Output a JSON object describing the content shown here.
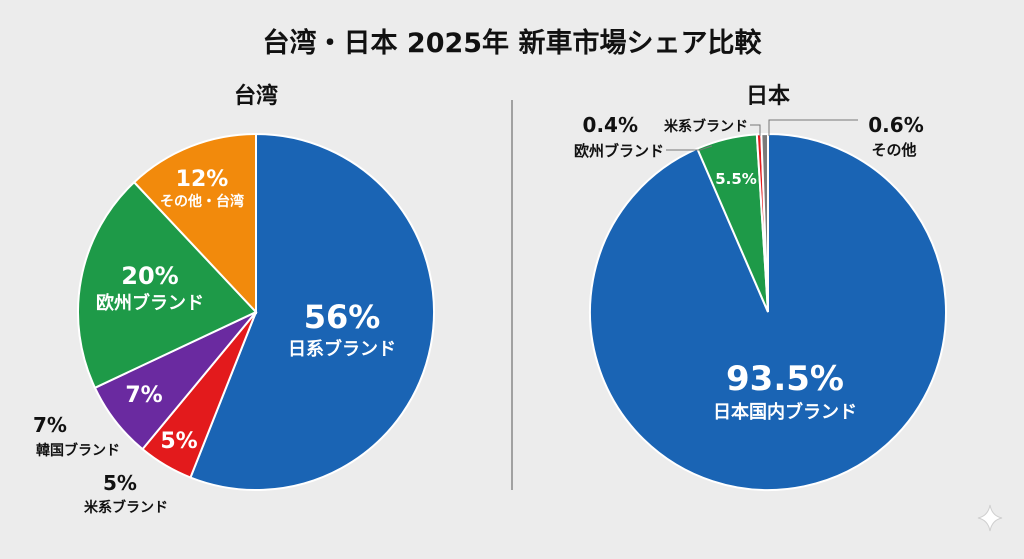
{
  "title": "台湾・日本 2025年 新車市場シェア比較",
  "colors": {
    "japan_brand": "#1a64b4",
    "us_brand": "#e31a1c",
    "korea_brand": "#6a2aa0",
    "europe_brand": "#1e9a48",
    "other": "#f28a0c",
    "background": "#ececec",
    "divider": "#888888"
  },
  "chart_data": [
    {
      "type": "pie",
      "title": "台湾",
      "slices": [
        {
          "label": "日系ブランド",
          "value": 56,
          "value_text": "56%",
          "color": "#1a64b4",
          "label_position": "inside"
        },
        {
          "label": "米系ブランド",
          "value": 5,
          "value_text": "5%",
          "color": "#e31a1c",
          "label_position": "inside+outside"
        },
        {
          "label": "韓国ブランド",
          "value": 7,
          "value_text": "7%",
          "color": "#6a2aa0",
          "label_position": "inside+outside"
        },
        {
          "label": "欧州ブランド",
          "value": 20,
          "value_text": "20%",
          "color": "#1e9a48",
          "label_position": "inside"
        },
        {
          "label": "その他・台湾",
          "value": 12,
          "value_text": "12%",
          "color": "#f28a0c",
          "label_position": "inside"
        }
      ]
    },
    {
      "type": "pie",
      "title": "日本",
      "slices": [
        {
          "label": "日本国内ブランド",
          "value": 93.5,
          "value_text": "93.5%",
          "color": "#1a64b4",
          "label_position": "inside"
        },
        {
          "label": "欧州ブランド",
          "value": 5.5,
          "value_text": "5.5%",
          "color": "#1e9a48",
          "label_position": "inside+callout"
        },
        {
          "label": "米系ブランド",
          "value": 0.4,
          "value_text": "0.4%",
          "color": "#e31a1c",
          "label_position": "callout"
        },
        {
          "label": "その他",
          "value": 0.6,
          "value_text": "0.6%",
          "color": "#7a7a7a",
          "label_position": "callout"
        }
      ]
    }
  ]
}
